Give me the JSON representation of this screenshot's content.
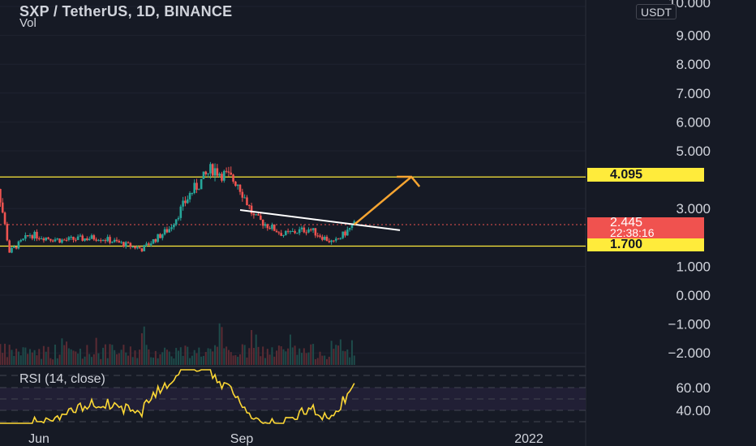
{
  "header": {
    "title": "SXP / TetherUS, 1D, BINANCE",
    "volume_label": "Vol",
    "currency": "USDT"
  },
  "rsi": {
    "label": "RSI (14, close)",
    "levels": [
      "60.00",
      "40.00"
    ]
  },
  "axis": {
    "top_partial": "10.000",
    "price_ticks": [
      "9.000",
      "8.000",
      "7.000",
      "6.000",
      "5.000",
      "3.000",
      "1.000",
      "0.000",
      "−1.000",
      "−2.000"
    ],
    "time_labels": [
      "Jun",
      "Sep",
      "2022"
    ]
  },
  "tags": {
    "resistance": "4.095",
    "support": "1.700",
    "last_price": "2.445",
    "countdown": "22:38:16"
  },
  "colors": {
    "background": "#161a25",
    "up": "#26a69a",
    "down": "#ef5350",
    "level_line": "#ffeb3b",
    "rsi_line": "#fdd835",
    "arrow": "#f7a531",
    "trendline": "#ffffff"
  },
  "chart_data": {
    "type": "candlestick",
    "symbol": "SXP / TetherUS",
    "interval": "1D",
    "exchange": "BINANCE",
    "price_axis_range": [
      -2.5,
      10
    ],
    "horizontal_levels": [
      4.095,
      1.7
    ],
    "last_price": 2.445,
    "close_path": [
      {
        "date": "2021-05-15",
        "close": 4.6
      },
      {
        "date": "2021-05-18",
        "close": 3.8
      },
      {
        "date": "2021-05-23",
        "close": 1.5
      },
      {
        "date": "2021-06-01",
        "close": 2.1
      },
      {
        "date": "2021-06-15",
        "close": 1.9
      },
      {
        "date": "2021-07-01",
        "close": 2.0
      },
      {
        "date": "2021-07-20",
        "close": 1.6
      },
      {
        "date": "2021-08-01",
        "close": 2.3
      },
      {
        "date": "2021-08-10",
        "close": 3.5
      },
      {
        "date": "2021-08-20",
        "close": 4.4
      },
      {
        "date": "2021-08-31",
        "close": 3.9
      },
      {
        "date": "2021-09-07",
        "close": 2.7
      },
      {
        "date": "2021-09-20",
        "close": 2.1
      },
      {
        "date": "2021-10-01",
        "close": 2.3
      },
      {
        "date": "2021-10-12",
        "close": 1.8
      },
      {
        "date": "2021-10-21",
        "close": 2.445
      }
    ],
    "trendline": [
      {
        "date": "2021-09-01",
        "price": 2.95
      },
      {
        "date": "2021-11-10",
        "price": 2.25
      }
    ],
    "projection_arrow": [
      {
        "date": "2021-10-21",
        "price": 2.445
      },
      {
        "date": "2021-11-15",
        "price": 4.1
      }
    ],
    "rsi_levels": [
      60,
      40
    ]
  }
}
